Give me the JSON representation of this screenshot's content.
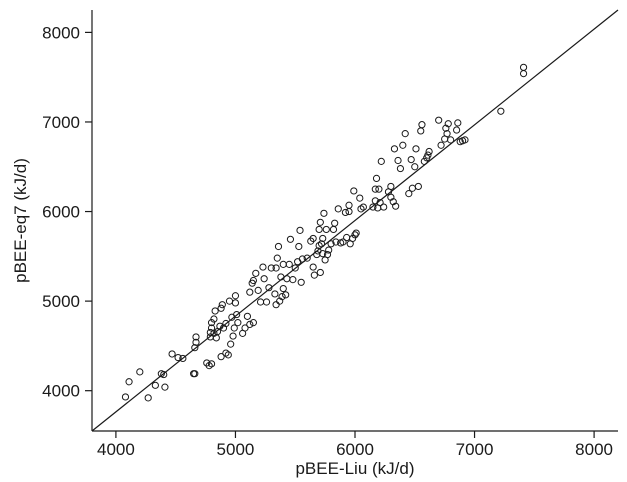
{
  "chart_data": {
    "type": "scatter",
    "title": "",
    "xlabel": "pBEE-Liu (kJ/d)",
    "ylabel": "pBEE-eq7 (kJ/d)",
    "xlim": [
      3800,
      8200
    ],
    "ylim": [
      3550,
      8250
    ],
    "xticks": [
      4000,
      5000,
      6000,
      7000,
      8000
    ],
    "yticks": [
      4000,
      5000,
      6000,
      7000,
      8000
    ],
    "xtick_labels": [
      "4000",
      "5000",
      "6000",
      "7000",
      "8000"
    ],
    "ytick_labels": [
      "4000",
      "5000",
      "6000",
      "7000",
      "8000"
    ],
    "grid": false,
    "legend": "none",
    "marker": "open-circle",
    "colors": {
      "marker": "#1a1a1a",
      "line": "#1a1a1a",
      "axes": "#1a1a1a"
    },
    "reference_line": {
      "type": "identity",
      "from": [
        3800,
        3550
      ],
      "to": [
        8200,
        8250
      ]
    },
    "series": [
      {
        "points": [
          [
            4080,
            3930
          ],
          [
            4110,
            4100
          ],
          [
            4200,
            4210
          ],
          [
            4270,
            3920
          ],
          [
            4330,
            4060
          ],
          [
            4380,
            4190
          ],
          [
            4400,
            4180
          ],
          [
            4410,
            4040
          ],
          [
            4470,
            4410
          ],
          [
            4520,
            4370
          ],
          [
            4560,
            4360
          ],
          [
            4650,
            4190
          ],
          [
            4660,
            4190
          ],
          [
            4660,
            4480
          ],
          [
            4670,
            4540
          ],
          [
            4670,
            4600
          ],
          [
            4760,
            4310
          ],
          [
            4780,
            4280
          ],
          [
            4790,
            4600
          ],
          [
            4790,
            4650
          ],
          [
            4800,
            4300
          ],
          [
            4800,
            4700
          ],
          [
            4800,
            4760
          ],
          [
            4820,
            4640
          ],
          [
            4820,
            4800
          ],
          [
            4830,
            4890
          ],
          [
            4840,
            4590
          ],
          [
            4850,
            4660
          ],
          [
            4870,
            4720
          ],
          [
            4880,
            4380
          ],
          [
            4880,
            4920
          ],
          [
            4890,
            4960
          ],
          [
            4900,
            4700
          ],
          [
            4920,
            4420
          ],
          [
            4920,
            4750
          ],
          [
            4940,
            4400
          ],
          [
            4950,
            5000
          ],
          [
            4960,
            4520
          ],
          [
            4970,
            4820
          ],
          [
            4980,
            4610
          ],
          [
            4990,
            4700
          ],
          [
            5000,
            4980
          ],
          [
            5000,
            5060
          ],
          [
            5010,
            4850
          ],
          [
            5020,
            4760
          ],
          [
            5060,
            4640
          ],
          [
            5080,
            4700
          ],
          [
            5100,
            4830
          ],
          [
            5120,
            4740
          ],
          [
            5120,
            5100
          ],
          [
            5140,
            5200
          ],
          [
            5150,
            4760
          ],
          [
            5150,
            5230
          ],
          [
            5170,
            5310
          ],
          [
            5190,
            5120
          ],
          [
            5210,
            4990
          ],
          [
            5230,
            5380
          ],
          [
            5240,
            5250
          ],
          [
            5260,
            4990
          ],
          [
            5280,
            5150
          ],
          [
            5300,
            5370
          ],
          [
            5330,
            5080
          ],
          [
            5340,
            4960
          ],
          [
            5340,
            5370
          ],
          [
            5350,
            5480
          ],
          [
            5360,
            5610
          ],
          [
            5370,
            5000
          ],
          [
            5380,
            5270
          ],
          [
            5390,
            5050
          ],
          [
            5400,
            5140
          ],
          [
            5400,
            5410
          ],
          [
            5420,
            5070
          ],
          [
            5430,
            5250
          ],
          [
            5450,
            5410
          ],
          [
            5460,
            5690
          ],
          [
            5480,
            5240
          ],
          [
            5500,
            5370
          ],
          [
            5520,
            5440
          ],
          [
            5530,
            5610
          ],
          [
            5540,
            5790
          ],
          [
            5550,
            5210
          ],
          [
            5560,
            5470
          ],
          [
            5600,
            5480
          ],
          [
            5630,
            5670
          ],
          [
            5650,
            5380
          ],
          [
            5650,
            5700
          ],
          [
            5660,
            5290
          ],
          [
            5680,
            5520
          ],
          [
            5690,
            5560
          ],
          [
            5700,
            5620
          ],
          [
            5700,
            5800
          ],
          [
            5710,
            5320
          ],
          [
            5710,
            5880
          ],
          [
            5720,
            5640
          ],
          [
            5730,
            5530
          ],
          [
            5730,
            5700
          ],
          [
            5740,
            5980
          ],
          [
            5750,
            5460
          ],
          [
            5760,
            5800
          ],
          [
            5770,
            5520
          ],
          [
            5780,
            5570
          ],
          [
            5800,
            5640
          ],
          [
            5820,
            5800
          ],
          [
            5830,
            5870
          ],
          [
            5840,
            5660
          ],
          [
            5860,
            6030
          ],
          [
            5880,
            5650
          ],
          [
            5900,
            5660
          ],
          [
            5920,
            5990
          ],
          [
            5930,
            5710
          ],
          [
            5950,
            6000
          ],
          [
            5950,
            6070
          ],
          [
            5960,
            5640
          ],
          [
            5980,
            5700
          ],
          [
            5990,
            6230
          ],
          [
            6000,
            5740
          ],
          [
            6010,
            5760
          ],
          [
            6040,
            6150
          ],
          [
            6050,
            6030
          ],
          [
            6070,
            6050
          ],
          [
            6150,
            6050
          ],
          [
            6170,
            6120
          ],
          [
            6170,
            6250
          ],
          [
            6180,
            6370
          ],
          [
            6190,
            6040
          ],
          [
            6200,
            6250
          ],
          [
            6210,
            6100
          ],
          [
            6220,
            6560
          ],
          [
            6240,
            6050
          ],
          [
            6280,
            6220
          ],
          [
            6300,
            6160
          ],
          [
            6300,
            6280
          ],
          [
            6320,
            6110
          ],
          [
            6330,
            6700
          ],
          [
            6340,
            6060
          ],
          [
            6360,
            6570
          ],
          [
            6380,
            6480
          ],
          [
            6400,
            6740
          ],
          [
            6420,
            6870
          ],
          [
            6450,
            6200
          ],
          [
            6470,
            6580
          ],
          [
            6480,
            6260
          ],
          [
            6500,
            6500
          ],
          [
            6510,
            6700
          ],
          [
            6530,
            6280
          ],
          [
            6550,
            6900
          ],
          [
            6560,
            6970
          ],
          [
            6580,
            6560
          ],
          [
            6600,
            6600
          ],
          [
            6610,
            6630
          ],
          [
            6620,
            6670
          ],
          [
            6700,
            7020
          ],
          [
            6720,
            6740
          ],
          [
            6750,
            6810
          ],
          [
            6760,
            6930
          ],
          [
            6770,
            6870
          ],
          [
            6780,
            6980
          ],
          [
            6800,
            6800
          ],
          [
            6850,
            6910
          ],
          [
            6860,
            6990
          ],
          [
            6880,
            6780
          ],
          [
            6900,
            6790
          ],
          [
            6920,
            6800
          ],
          [
            7220,
            7120
          ],
          [
            7410,
            7540
          ],
          [
            7410,
            7610
          ]
        ]
      }
    ]
  }
}
